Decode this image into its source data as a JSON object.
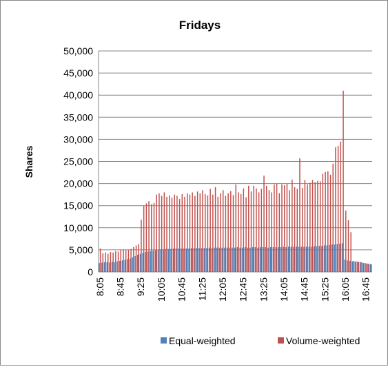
{
  "chart_data": {
    "type": "bar",
    "title": "Fridays",
    "y_label": "Shares",
    "categories": [
      "8:05",
      null,
      null,
      null,
      null,
      null,
      null,
      null,
      "8:45",
      null,
      null,
      null,
      null,
      null,
      null,
      null,
      "9:25",
      null,
      null,
      null,
      null,
      null,
      null,
      null,
      "10:05",
      null,
      null,
      null,
      null,
      null,
      null,
      null,
      "10:45",
      null,
      null,
      null,
      null,
      null,
      null,
      null,
      "11:25",
      null,
      null,
      null,
      null,
      null,
      null,
      null,
      "12:05",
      null,
      null,
      null,
      null,
      null,
      null,
      null,
      "12:45",
      null,
      null,
      null,
      null,
      null,
      null,
      null,
      "13:25",
      null,
      null,
      null,
      null,
      null,
      null,
      null,
      "14:05",
      null,
      null,
      null,
      null,
      null,
      null,
      null,
      "14:45",
      null,
      null,
      null,
      null,
      null,
      null,
      null,
      "15:25",
      null,
      null,
      null,
      null,
      null,
      null,
      null,
      "16:05",
      null,
      null,
      null,
      null,
      null,
      null,
      null,
      "16:45",
      null,
      null
    ],
    "series": [
      {
        "name": "Equal-weighted",
        "color": "#4f81bd",
        "values": [
          2000,
          2100,
          2200,
          2200,
          2100,
          2300,
          2200,
          2400,
          2500,
          2600,
          2700,
          2900,
          3000,
          3300,
          3600,
          3900,
          4100,
          4300,
          4500,
          4600,
          4700,
          4800,
          4900,
          5000,
          5100,
          5100,
          5200,
          5200,
          5200,
          5300,
          5300,
          5300,
          5300,
          5300,
          5300,
          5300,
          5400,
          5400,
          5400,
          5400,
          5400,
          5400,
          5400,
          5500,
          5400,
          5500,
          5500,
          5500,
          5500,
          5500,
          5500,
          5500,
          5500,
          5500,
          5600,
          5500,
          5500,
          5600,
          5500,
          5500,
          5600,
          5600,
          5500,
          5600,
          5600,
          5600,
          5500,
          5600,
          5600,
          5600,
          5600,
          5600,
          5700,
          5600,
          5700,
          5700,
          5700,
          5700,
          5700,
          5700,
          5700,
          5700,
          5700,
          5700,
          5800,
          5800,
          5900,
          5900,
          6000,
          6000,
          6100,
          6200,
          6200,
          6300,
          6400,
          6500,
          2800,
          2600,
          2500,
          2400,
          2300,
          2300,
          2200,
          2100,
          2000,
          1900,
          1800
        ]
      },
      {
        "name": "Volume-weighted",
        "color": "#c0504d",
        "values": [
          5300,
          4200,
          4400,
          4100,
          4500,
          4400,
          4700,
          4600,
          5000,
          5100,
          4900,
          5000,
          5200,
          5600,
          6000,
          6300,
          11800,
          15000,
          15500,
          16000,
          15300,
          15600,
          17500,
          17800,
          17200,
          18000,
          17000,
          17300,
          16800,
          17500,
          17200,
          16500,
          17600,
          17000,
          17800,
          17500,
          18000,
          17200,
          18200,
          17800,
          18500,
          17600,
          17300,
          18800,
          17500,
          19200,
          17000,
          17800,
          18500,
          17200,
          17800,
          18300,
          17400,
          19800,
          18000,
          17600,
          18900,
          16900,
          19500,
          18200,
          19500,
          18900,
          18000,
          18800,
          21800,
          19500,
          18500,
          18000,
          19800,
          20000,
          17800,
          19800,
          19600,
          20000,
          18500,
          20900,
          19200,
          18800,
          25700,
          19000,
          20800,
          19800,
          20200,
          20800,
          20300,
          20600,
          20500,
          22200,
          22600,
          22800,
          22000,
          24500,
          28200,
          28500,
          29500,
          41000,
          13900,
          11700,
          9000,
          2500,
          2400,
          2300,
          2200,
          2000,
          1900,
          1800,
          1700
        ]
      }
    ],
    "ylim": [
      0,
      50000
    ],
    "yticks": [
      0,
      {
        "value": 5000,
        "label": "5,000"
      },
      {
        "value": 10000,
        "label": "10,000"
      },
      {
        "value": 15000,
        "label": "15,000"
      },
      {
        "value": 20000,
        "label": "20,000"
      },
      {
        "value": 25000,
        "label": "25,000"
      },
      {
        "value": 30000,
        "label": "30,000"
      },
      {
        "value": 35000,
        "label": "35,000"
      },
      {
        "value": 40000,
        "label": "40,000"
      },
      {
        "value": 45000,
        "label": "45,000"
      },
      {
        "value": 50000,
        "label": "50,000"
      }
    ],
    "grid": true,
    "legend": "bottom"
  }
}
